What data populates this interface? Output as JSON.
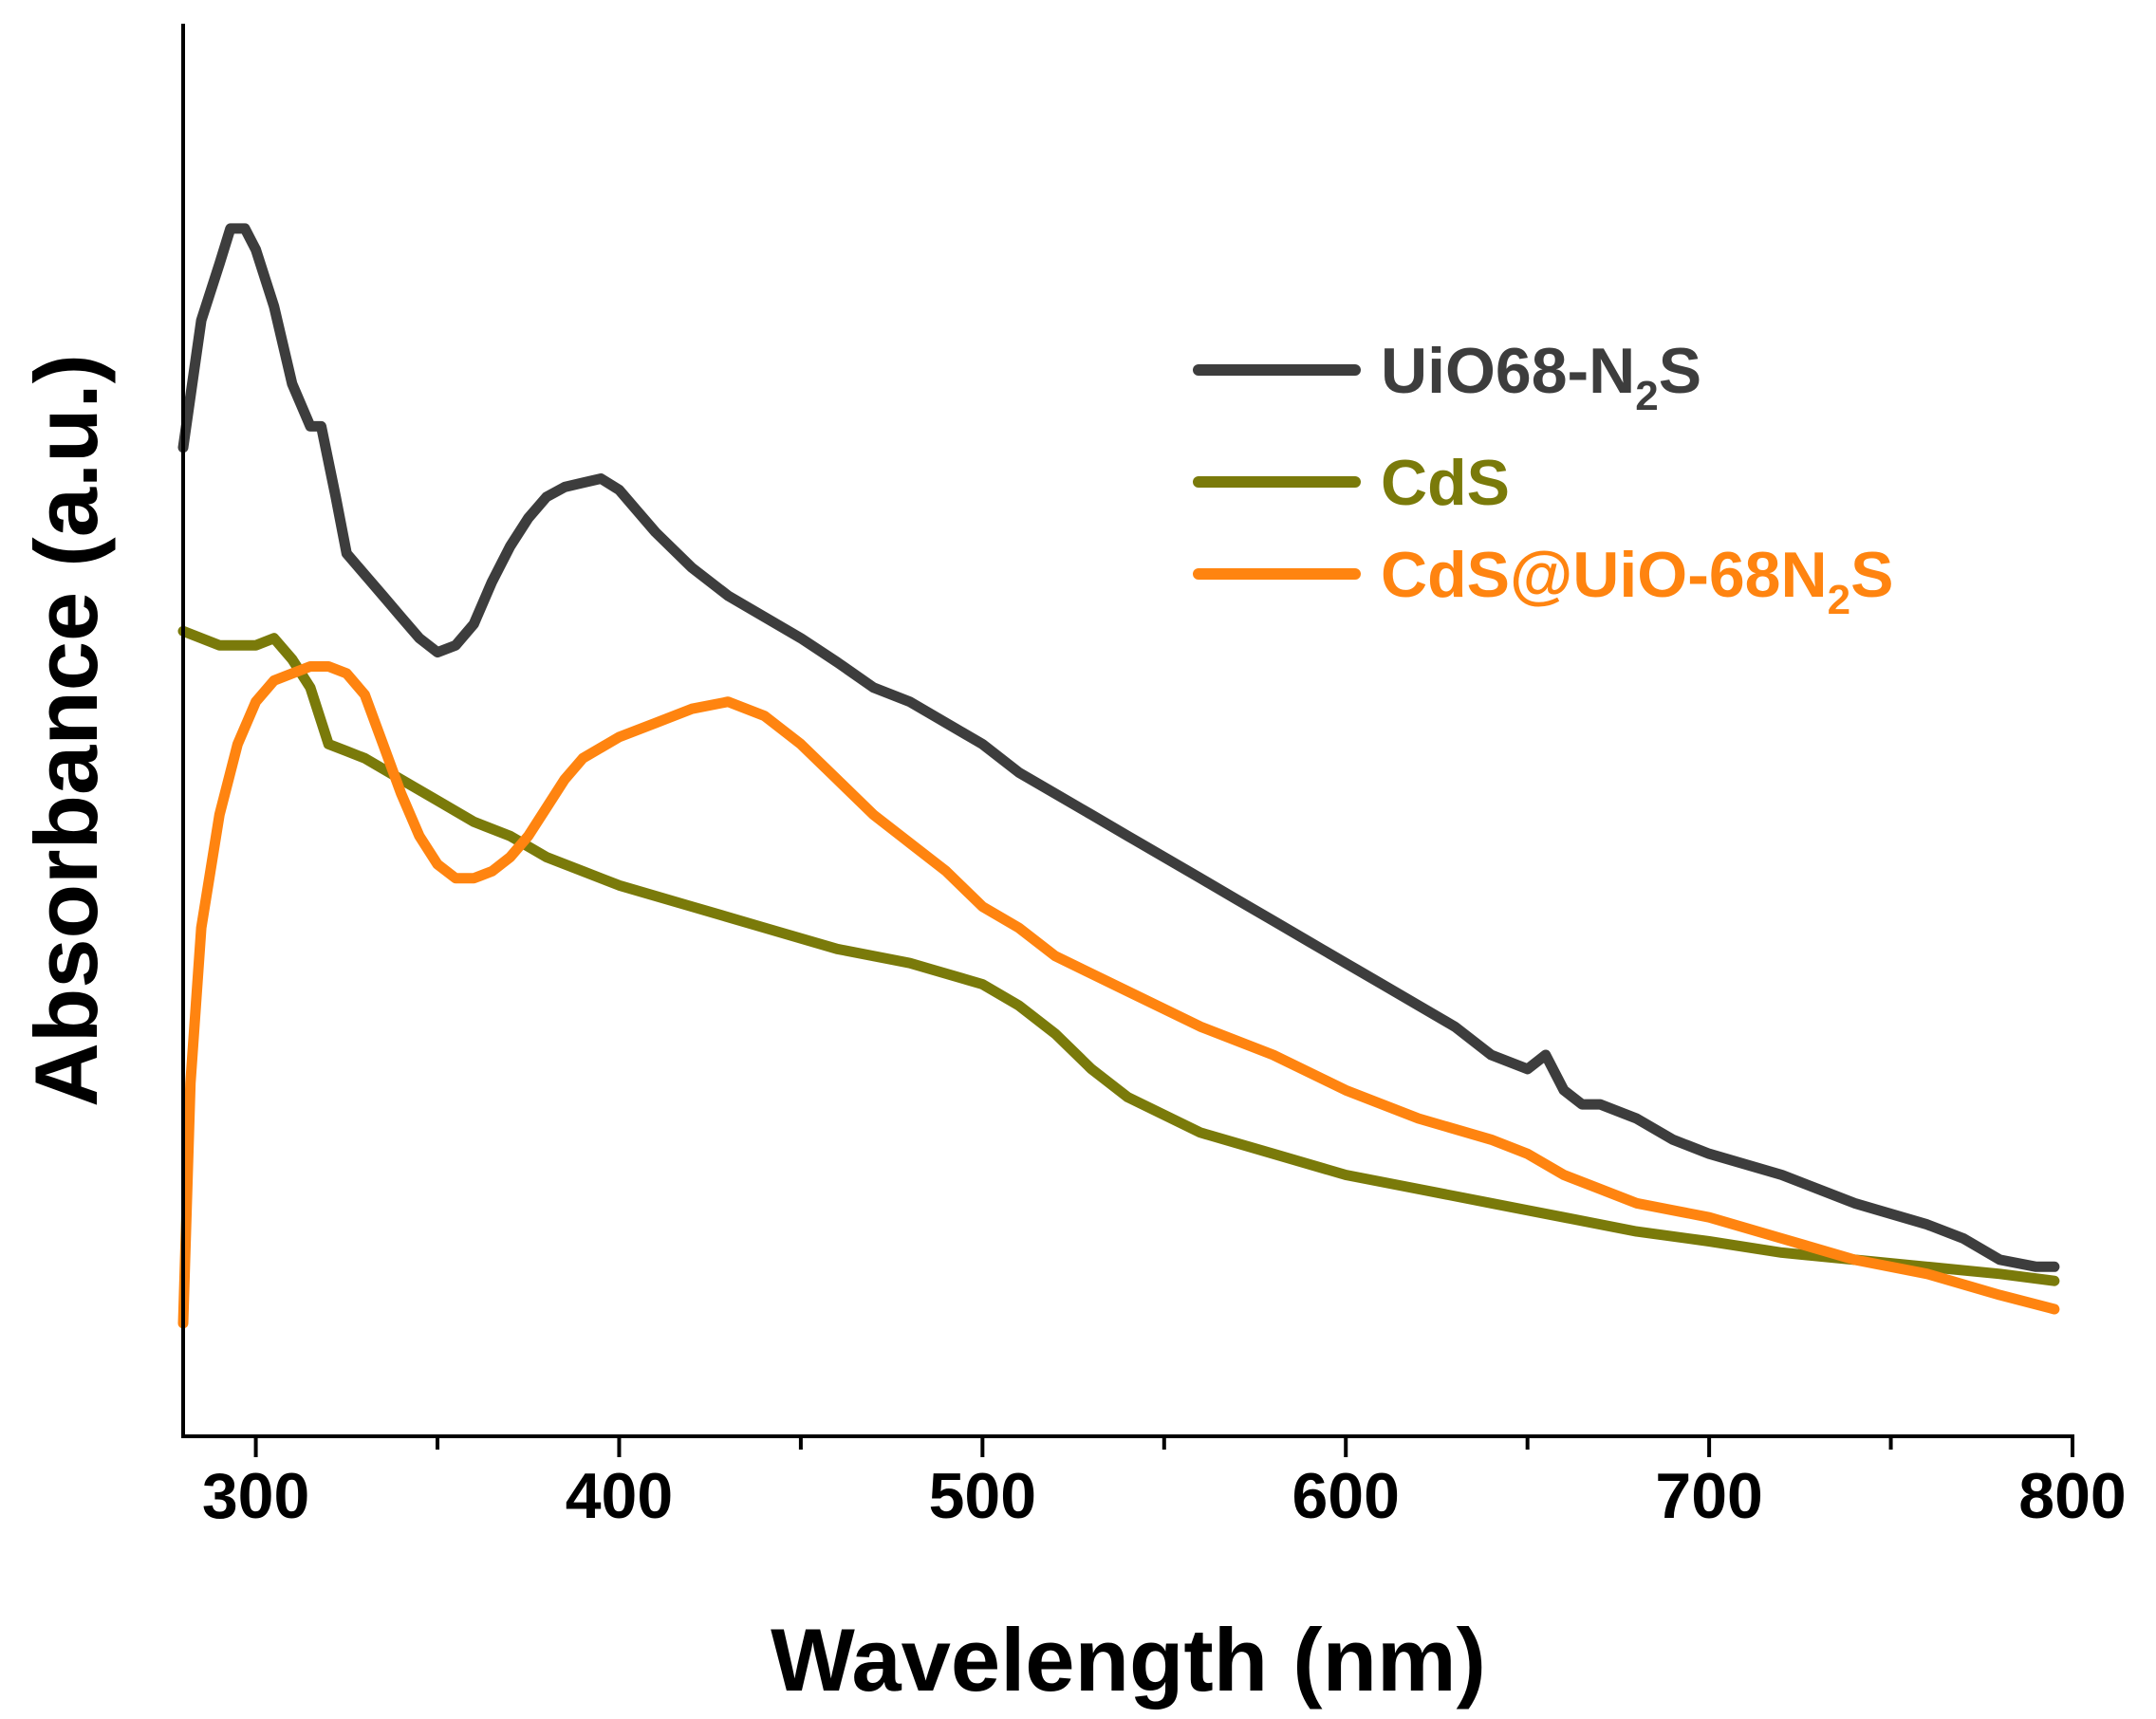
{
  "chart_data": {
    "type": "line",
    "xlabel": "Wavelength (nm)",
    "ylabel": "Absorbance (a.u.)",
    "xlim": [
      280,
      800
    ],
    "ylim": [
      0,
      1
    ],
    "x_ticks": [
      300,
      400,
      500,
      600,
      700,
      800
    ],
    "y_ticks_shown": false,
    "grid": false,
    "legend_position": "top-right",
    "series": [
      {
        "name_main": "UiO68-N",
        "name_sub": "2",
        "name_tail": "S",
        "color": "#3d3d3d",
        "x": [
          280,
          285,
          290,
          293,
          297,
          300,
          305,
          310,
          315,
          318,
          322,
          325,
          330,
          335,
          340,
          345,
          350,
          355,
          360,
          365,
          370,
          375,
          380,
          385,
          390,
          395,
          400,
          405,
          410,
          420,
          430,
          440,
          450,
          460,
          470,
          480,
          490,
          500,
          510,
          520,
          530,
          540,
          550,
          560,
          570,
          580,
          590,
          600,
          610,
          620,
          630,
          640,
          650,
          655,
          660,
          665,
          670,
          680,
          690,
          700,
          720,
          740,
          760,
          770,
          780,
          790,
          795
        ],
        "y": [
          0.7,
          0.79,
          0.83,
          0.855,
          0.855,
          0.84,
          0.8,
          0.745,
          0.715,
          0.715,
          0.665,
          0.625,
          0.61,
          0.595,
          0.58,
          0.565,
          0.555,
          0.56,
          0.575,
          0.605,
          0.63,
          0.65,
          0.665,
          0.672,
          0.675,
          0.678,
          0.67,
          0.655,
          0.64,
          0.615,
          0.595,
          0.58,
          0.565,
          0.548,
          0.53,
          0.52,
          0.505,
          0.49,
          0.47,
          0.455,
          0.44,
          0.425,
          0.41,
          0.395,
          0.38,
          0.365,
          0.35,
          0.335,
          0.32,
          0.305,
          0.29,
          0.27,
          0.26,
          0.27,
          0.245,
          0.235,
          0.235,
          0.225,
          0.21,
          0.2,
          0.185,
          0.165,
          0.15,
          0.14,
          0.125,
          0.12,
          0.12
        ]
      },
      {
        "name_main": "CdS",
        "name_sub": "",
        "name_tail": "",
        "color": "#7a7a0a",
        "x": [
          280,
          290,
          300,
          305,
          310,
          315,
          320,
          325,
          330,
          340,
          350,
          360,
          370,
          380,
          390,
          400,
          420,
          440,
          460,
          480,
          500,
          510,
          520,
          530,
          540,
          560,
          580,
          600,
          620,
          640,
          660,
          680,
          700,
          720,
          740,
          760,
          780,
          795
        ],
        "y": [
          0.57,
          0.56,
          0.56,
          0.565,
          0.55,
          0.53,
          0.49,
          0.485,
          0.48,
          0.465,
          0.45,
          0.435,
          0.425,
          0.41,
          0.4,
          0.39,
          0.375,
          0.36,
          0.345,
          0.335,
          0.32,
          0.305,
          0.285,
          0.26,
          0.24,
          0.215,
          0.2,
          0.185,
          0.175,
          0.165,
          0.155,
          0.145,
          0.138,
          0.13,
          0.125,
          0.12,
          0.115,
          0.11
        ]
      },
      {
        "name_main": "CdS@UiO-68N",
        "name_sub": "2",
        "name_tail": "S",
        "color": "#ff8410",
        "x": [
          280,
          282,
          285,
          290,
          295,
          300,
          305,
          310,
          315,
          320,
          325,
          330,
          335,
          340,
          345,
          350,
          355,
          360,
          365,
          370,
          375,
          380,
          385,
          390,
          400,
          410,
          420,
          430,
          440,
          450,
          460,
          470,
          480,
          490,
          500,
          510,
          520,
          540,
          560,
          580,
          600,
          620,
          640,
          650,
          660,
          670,
          680,
          700,
          720,
          740,
          760,
          780,
          795
        ],
        "y": [
          0.08,
          0.25,
          0.36,
          0.44,
          0.49,
          0.52,
          0.535,
          0.54,
          0.545,
          0.545,
          0.54,
          0.525,
          0.49,
          0.455,
          0.425,
          0.405,
          0.395,
          0.395,
          0.4,
          0.41,
          0.425,
          0.445,
          0.465,
          0.48,
          0.495,
          0.505,
          0.515,
          0.52,
          0.51,
          0.49,
          0.465,
          0.44,
          0.42,
          0.4,
          0.375,
          0.36,
          0.34,
          0.315,
          0.29,
          0.27,
          0.245,
          0.225,
          0.21,
          0.2,
          0.185,
          0.175,
          0.165,
          0.155,
          0.14,
          0.125,
          0.115,
          0.1,
          0.09
        ]
      }
    ]
  }
}
